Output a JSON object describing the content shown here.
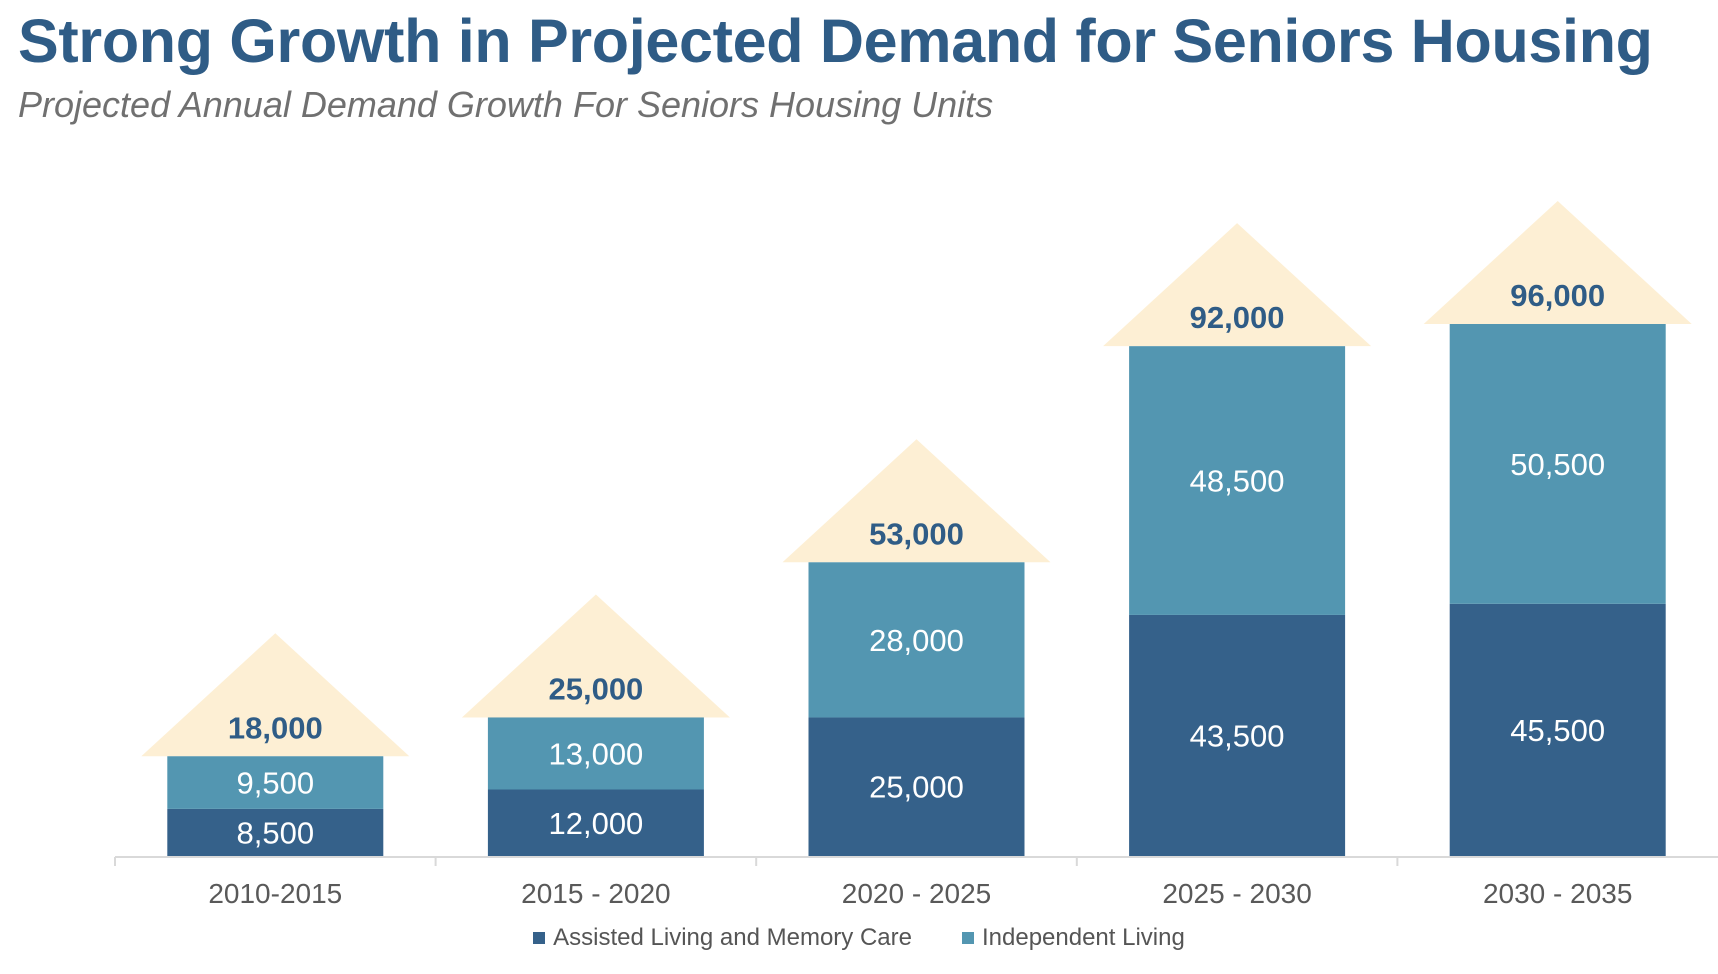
{
  "title": "Strong Growth in Projected Demand for Seniors Housing",
  "subtitle": "Projected Annual Demand Growth For Seniors Housing Units",
  "colors": {
    "assisted": "#35618a",
    "independent": "#5396b1",
    "house": "#fdefd4",
    "total_label": "#2f5c86",
    "axis_label": "#595959",
    "axis_line": "#d9d9d9"
  },
  "chart_data": {
    "type": "bar",
    "stacked": true,
    "categories": [
      "2010-2015",
      "2015 - 2020",
      "2020 - 2025",
      "2025 - 2030",
      "2030 - 2035"
    ],
    "series": [
      {
        "name": "Assisted Living and Memory Care",
        "values": [
          8500,
          12000,
          25000,
          43500,
          45500
        ],
        "labels": [
          "8,500",
          "12,000",
          "25,000",
          "43,500",
          "45,500"
        ]
      },
      {
        "name": "Independent Living",
        "values": [
          9500,
          13000,
          28000,
          48500,
          50500
        ],
        "labels": [
          "9,500",
          "13,000",
          "28,000",
          "48,500",
          "50,500"
        ]
      }
    ],
    "totals": [
      18000,
      25000,
      53000,
      92000,
      96000
    ],
    "total_labels": [
      "18,000",
      "25,000",
      "53,000",
      "92,000",
      "96,000"
    ],
    "legend_position": "bottom",
    "grid": false
  }
}
